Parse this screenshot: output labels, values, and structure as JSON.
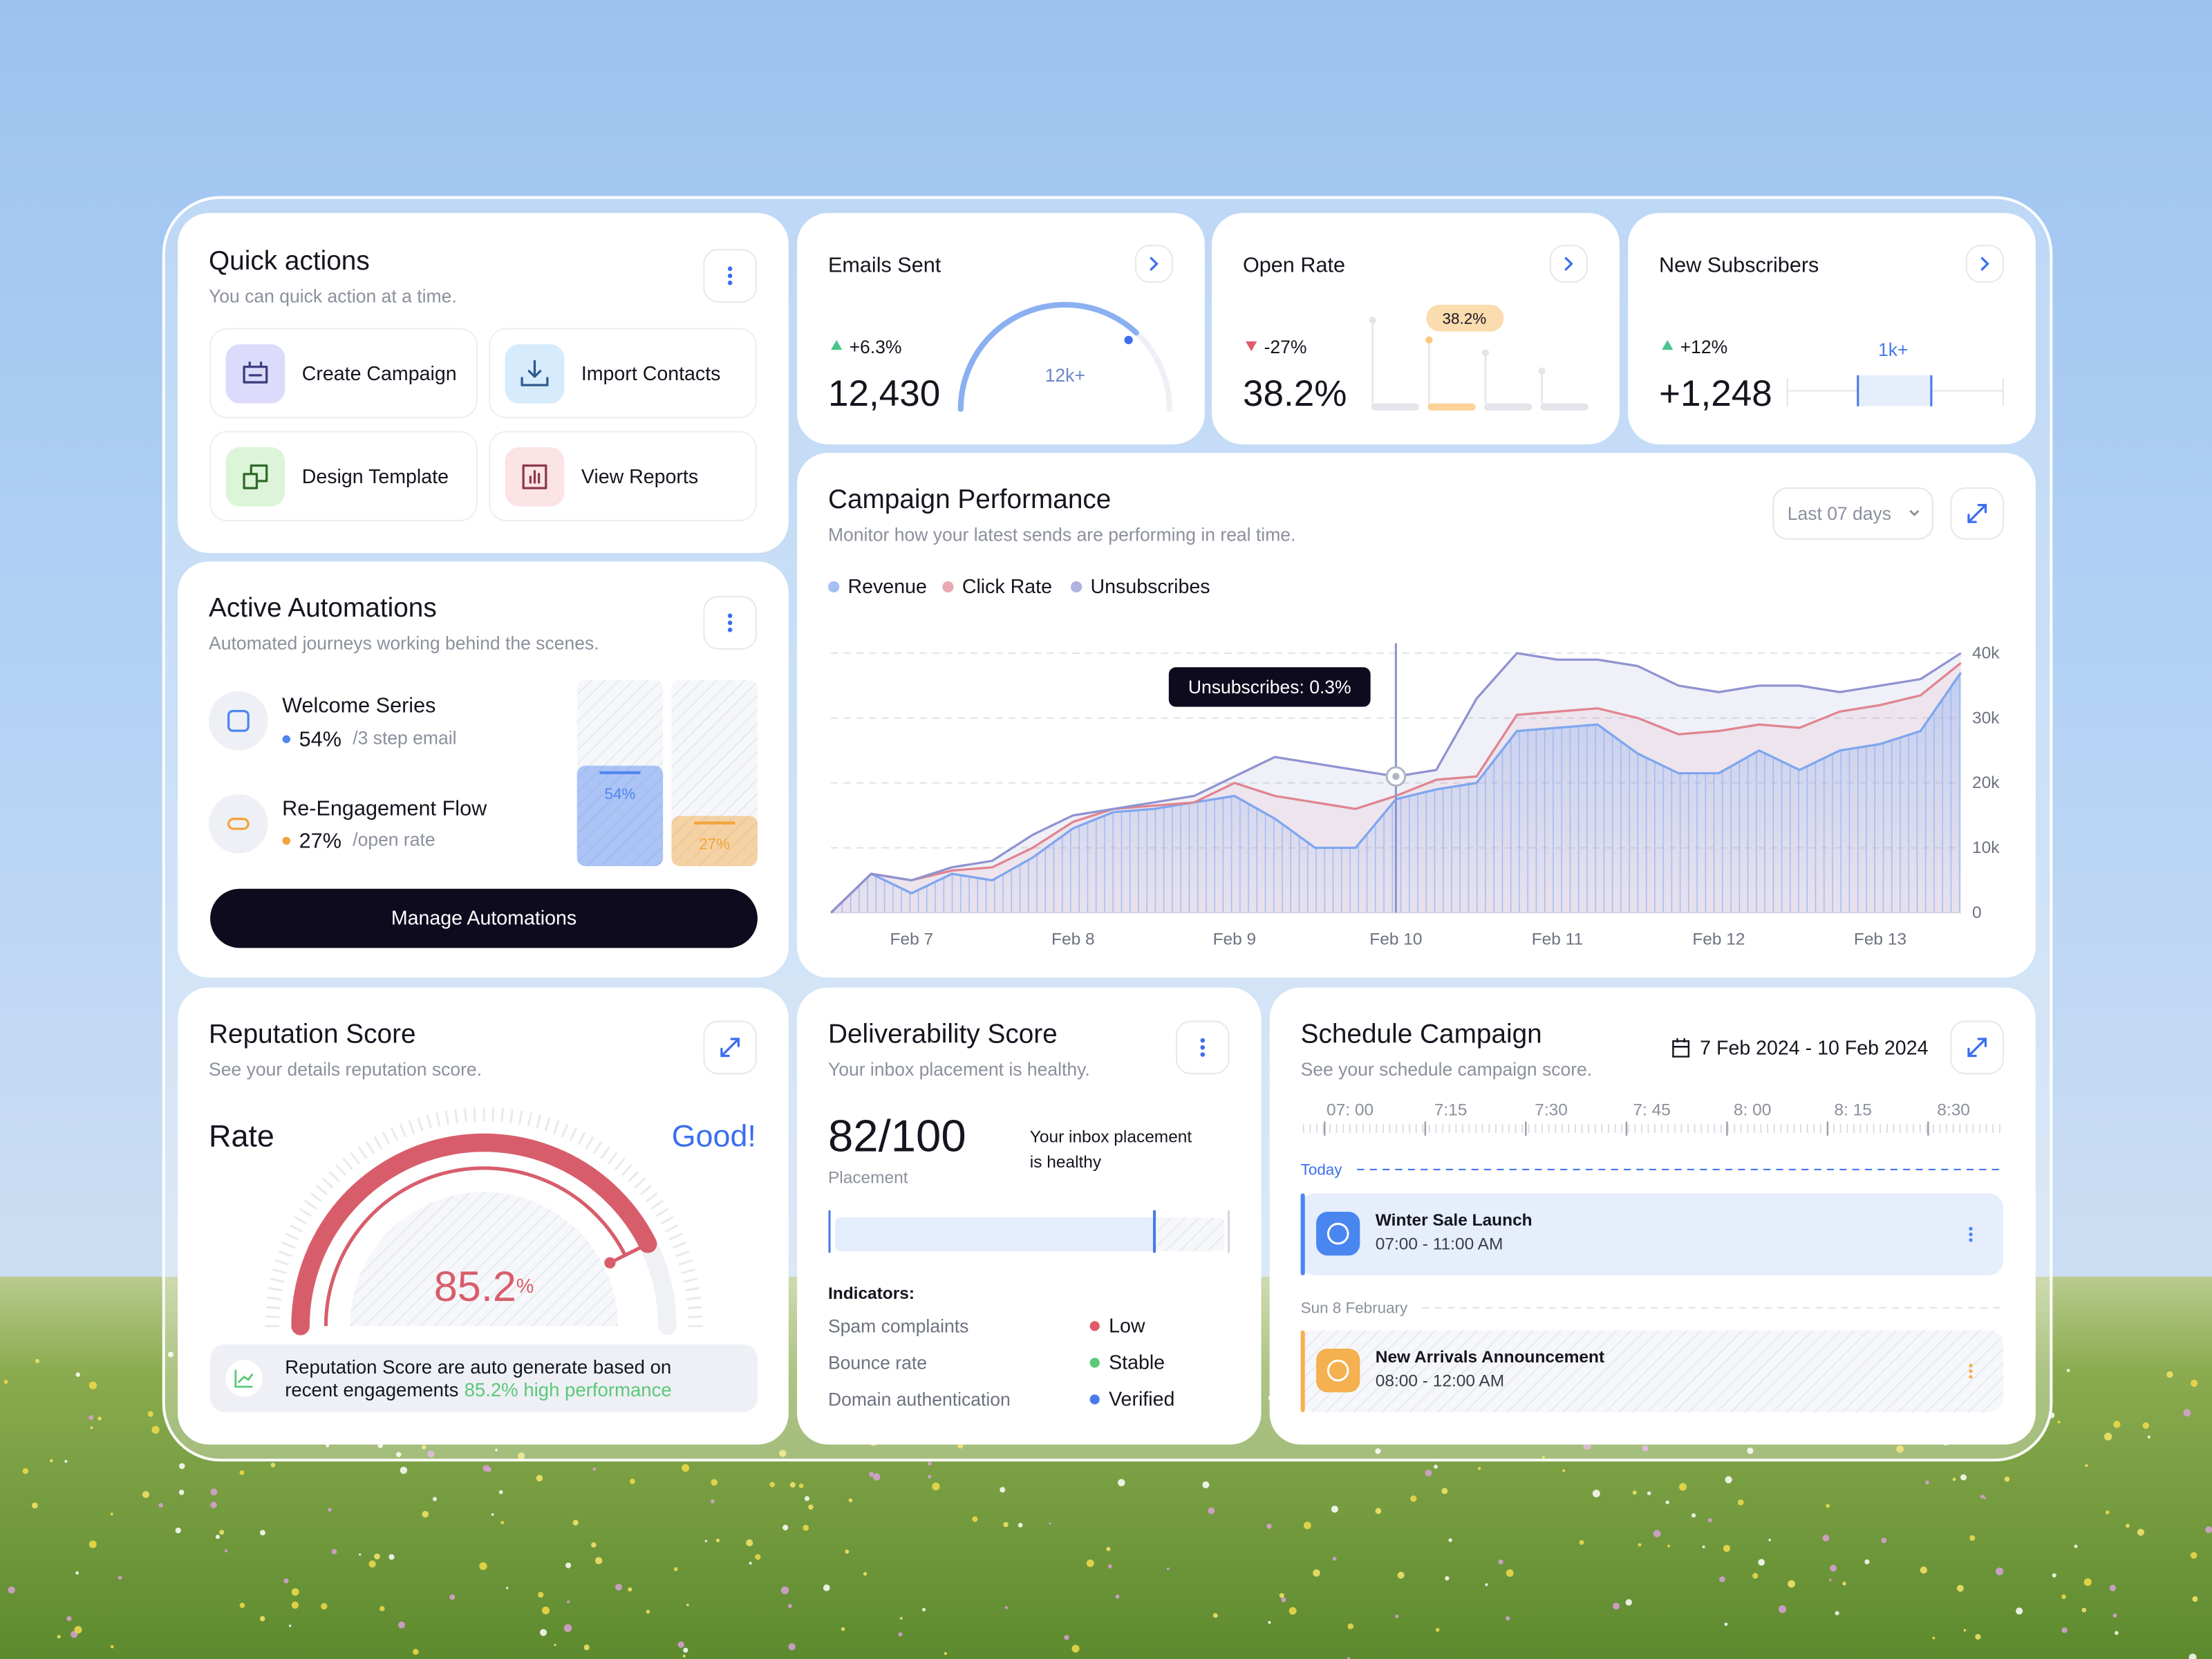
{
  "quick_actions": {
    "title": "Quick actions",
    "subtitle": "You can quick action at a time.",
    "actions": [
      "Create Campaign",
      "Import Contacts",
      "Design Template",
      "View Reports"
    ]
  },
  "stats": [
    {
      "title": "Emails Sent",
      "change": "+6.3%",
      "trend": "up",
      "value": "12,430",
      "badge": "12k+"
    },
    {
      "title": "Open Rate",
      "change": "-27%",
      "trend": "down",
      "value": "38.2%",
      "badge": "38.2%"
    },
    {
      "title": "New Subscribers",
      "change": "+12%",
      "trend": "up",
      "value": "+1,248",
      "badge": "1k+"
    }
  ],
  "active_automations": {
    "title": "Active Automations",
    "subtitle": "Automated journeys working behind the scenes.",
    "items": [
      {
        "name": "Welcome Series",
        "value": 54,
        "value_label": "54%",
        "detail": "/3 step email",
        "color": "#4f86f0"
      },
      {
        "name": "Re-Engagement Flow",
        "value": 27,
        "value_label": "27%",
        "detail": "/open rate",
        "color": "#f2a33a"
      }
    ],
    "button": "Manage Automations"
  },
  "campaign_performance": {
    "title": "Campaign Performance",
    "subtitle": "Monitor how your latest sends are performing in real time.",
    "range": "Last 07 days",
    "tooltip": "Unsubscribes: 0.3%",
    "chart_data": {
      "type": "line",
      "categories": [
        null,
        null,
        "Feb 7",
        null,
        null,
        null,
        "Feb 8",
        null,
        null,
        null,
        "Feb 9",
        null,
        null,
        null,
        "Feb 10",
        null,
        null,
        null,
        "Feb 11",
        null,
        null,
        null,
        "Feb 12",
        null,
        null,
        null,
        "Feb 13",
        null,
        null
      ],
      "series": [
        {
          "name": "Revenue",
          "color": "#7ea6ee",
          "values": [
            0,
            6000,
            3000,
            6000,
            5000,
            8500,
            13000,
            15500,
            16000,
            17000,
            18000,
            14500,
            10000,
            10000,
            17500,
            19000,
            20000,
            28000,
            28500,
            29000,
            24500,
            21500,
            21500,
            25000,
            22000,
            25000,
            26000,
            28000,
            37000
          ]
        },
        {
          "name": "Click Rate",
          "color": "#e0848f",
          "values": [
            0,
            6000,
            5000,
            6500,
            7000,
            10000,
            14000,
            16000,
            16500,
            17000,
            20000,
            18000,
            17000,
            16000,
            18000,
            20500,
            21000,
            30500,
            31000,
            31500,
            30000,
            27500,
            28000,
            29000,
            28500,
            31000,
            32000,
            33500,
            38500
          ]
        },
        {
          "name": "Unsubscribes",
          "color": "#8f93d0",
          "values": [
            0,
            6000,
            5000,
            7000,
            8000,
            12000,
            15000,
            16000,
            17000,
            18000,
            21000,
            24000,
            23000,
            22000,
            21000,
            22000,
            33000,
            40000,
            39000,
            39000,
            38000,
            35000,
            34000,
            35000,
            35000,
            34000,
            35000,
            36000,
            40000
          ]
        }
      ],
      "ylim": [
        0,
        40000
      ],
      "yticks": [
        0,
        {
          "value": 10000,
          "label": "10k"
        },
        {
          "value": 20000,
          "label": "20k"
        },
        {
          "value": 30000,
          "label": "30k"
        },
        {
          "value": 40000,
          "label": "40k"
        }
      ],
      "grid": true
    }
  },
  "reputation": {
    "title": "Reputation Score",
    "subtitle": "See your details reputation score.",
    "rating_label": "Rate",
    "rating": "Good!",
    "score": 85.2,
    "score_unit": "%",
    "note": [
      "Reputation Score are auto generate based on",
      "recent   engagements"
    ],
    "note_highlight": "85.2% high performance"
  },
  "deliverability": {
    "title": "Deliverability Score",
    "subtitle": "Your inbox placement is healthy.",
    "score": 82,
    "score_max": 100,
    "score_label": "82/100",
    "caption": "Placement",
    "status_text": [
      "Your inbox placement",
      "is healthy"
    ],
    "indicators_title": "Indicators:",
    "indicators": [
      {
        "label": "Spam complaints",
        "status": "Low",
        "color": "#e05a6a"
      },
      {
        "label": "Bounce rate",
        "status": "Stable",
        "color": "#5cc878"
      },
      {
        "label": "Domain authentication",
        "status": "Verified",
        "color": "#4a7ae8"
      }
    ]
  },
  "schedule": {
    "title": "Schedule Campaign",
    "subtitle": "See your schedule campaign score.",
    "date_range": "7 Feb  2024 - 10 Feb  2024",
    "times": [
      "07: 00",
      "7:15",
      "7:30",
      "7: 45",
      "8: 00",
      "8: 15",
      "8:30"
    ],
    "today_label": "Today",
    "day_label": "Sun 8 February",
    "events": [
      {
        "title": "Winter Sale Launch",
        "time": "07:00 - 11:00 AM"
      },
      {
        "title": "New Arrivals Announcement",
        "time": "08:00 - 12:00 AM"
      }
    ]
  }
}
